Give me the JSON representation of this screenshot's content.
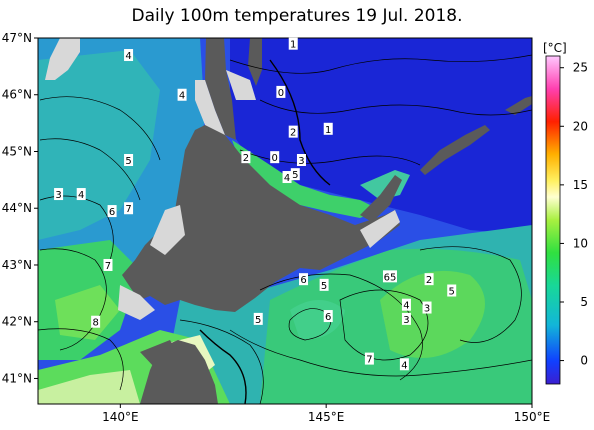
{
  "title": "Daily 100m temperatures 19 Jul. 2018.",
  "colorbar": {
    "unit": "[°C]",
    "min": -2,
    "max": 26,
    "ticks": [
      25,
      20,
      15,
      10,
      5,
      0
    ]
  },
  "axes": {
    "lon_ticks": [
      {
        "value": 140,
        "label": "140°E"
      },
      {
        "value": 145,
        "label": "145°E"
      },
      {
        "value": 150,
        "label": "150°E"
      }
    ],
    "lat_ticks": [
      {
        "value": 47,
        "label": "47°N"
      },
      {
        "value": 46,
        "label": "46°N"
      },
      {
        "value": 45,
        "label": "45°N"
      },
      {
        "value": 44,
        "label": "44°N"
      },
      {
        "value": 43,
        "label": "43°N"
      },
      {
        "value": 42,
        "label": "42°N"
      },
      {
        "value": 41,
        "label": "41°N"
      }
    ],
    "lon_range": [
      138,
      150
    ],
    "lat_range": [
      40.55,
      47.0
    ]
  },
  "contour_labels": [
    {
      "text": "1",
      "lon": 144.2,
      "lat": 46.9
    },
    {
      "text": "4",
      "lon": 140.2,
      "lat": 46.7
    },
    {
      "text": "4",
      "lon": 141.5,
      "lat": 46.0
    },
    {
      "text": "0",
      "lon": 143.9,
      "lat": 46.05
    },
    {
      "text": "2",
      "lon": 144.2,
      "lat": 45.35
    },
    {
      "text": "1",
      "lon": 145.05,
      "lat": 45.4
    },
    {
      "text": "5",
      "lon": 140.2,
      "lat": 44.85
    },
    {
      "text": "2",
      "lon": 143.05,
      "lat": 44.9
    },
    {
      "text": "0",
      "lon": 143.75,
      "lat": 44.9
    },
    {
      "text": "3",
      "lon": 144.4,
      "lat": 44.85
    },
    {
      "text": "4",
      "lon": 144.05,
      "lat": 44.55
    },
    {
      "text": "5",
      "lon": 144.25,
      "lat": 44.6
    },
    {
      "text": "3",
      "lon": 138.5,
      "lat": 44.25
    },
    {
      "text": "4",
      "lon": 139.05,
      "lat": 44.25
    },
    {
      "text": "6",
      "lon": 139.8,
      "lat": 43.95
    },
    {
      "text": "7",
      "lon": 140.2,
      "lat": 44.0
    },
    {
      "text": "7",
      "lon": 139.7,
      "lat": 43.0
    },
    {
      "text": "6",
      "lon": 144.45,
      "lat": 42.75
    },
    {
      "text": "5",
      "lon": 144.95,
      "lat": 42.65
    },
    {
      "text": "65",
      "lon": 146.55,
      "lat": 42.8
    },
    {
      "text": "2",
      "lon": 147.5,
      "lat": 42.75
    },
    {
      "text": "5",
      "lon": 148.05,
      "lat": 42.55
    },
    {
      "text": "4",
      "lon": 146.95,
      "lat": 42.3
    },
    {
      "text": "3",
      "lon": 147.45,
      "lat": 42.25
    },
    {
      "text": "6",
      "lon": 145.05,
      "lat": 42.1
    },
    {
      "text": "3",
      "lon": 146.95,
      "lat": 42.05
    },
    {
      "text": "8",
      "lon": 139.4,
      "lat": 42.0
    },
    {
      "text": "5",
      "lon": 143.35,
      "lat": 42.05
    },
    {
      "text": "7",
      "lon": 146.05,
      "lat": 41.35
    },
    {
      "text": "4",
      "lon": 146.9,
      "lat": 41.25
    }
  ]
}
